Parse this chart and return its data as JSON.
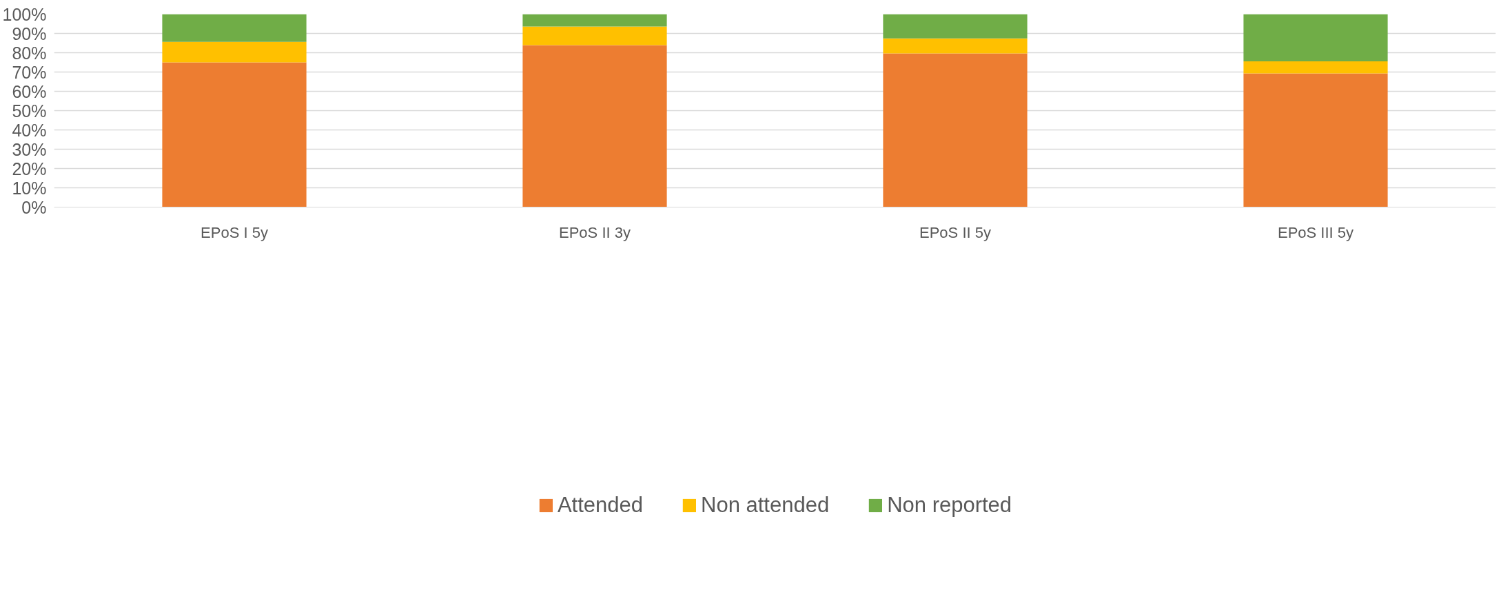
{
  "chart_data": {
    "type": "bar",
    "stacked": true,
    "categories": [
      "EPoS I 5y",
      "EPoS II 3y",
      "EPoS II 5y",
      "EPoS III 5y"
    ],
    "series": [
      {
        "name": "Attended",
        "color": "#ed7d31",
        "values": [
          75.0,
          83.9,
          79.6,
          69.3
        ]
      },
      {
        "name": "Non attended",
        "color": "#ffc000",
        "values": [
          10.6,
          9.7,
          7.8,
          6.2
        ]
      },
      {
        "name": "Non reported",
        "color": "#70ad47",
        "values": [
          14.4,
          6.4,
          12.6,
          24.5
        ]
      }
    ],
    "ylim": [
      0,
      100
    ],
    "yticks": [
      {
        "value": 0,
        "label": "0%"
      },
      {
        "value": 10,
        "label": "10%"
      },
      {
        "value": 20,
        "label": "20%"
      },
      {
        "value": 30,
        "label": "30%"
      },
      {
        "value": 40,
        "label": "40%"
      },
      {
        "value": 50,
        "label": "50%"
      },
      {
        "value": 60,
        "label": "60%"
      },
      {
        "value": 70,
        "label": "70%"
      },
      {
        "value": 80,
        "label": "80%"
      },
      {
        "value": 90,
        "label": "90%"
      },
      {
        "value": 100,
        "label": "100%"
      }
    ],
    "grid": "y",
    "legend": "bottom"
  }
}
